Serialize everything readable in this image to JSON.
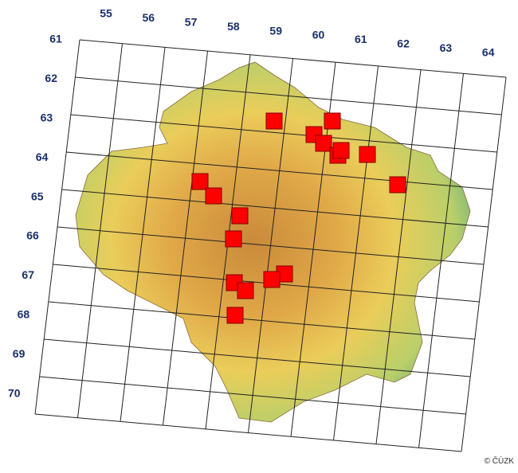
{
  "map": {
    "column_labels": [
      "55",
      "56",
      "57",
      "58",
      "59",
      "60",
      "61",
      "62",
      "63",
      "64"
    ],
    "row_labels": [
      "61",
      "62",
      "63",
      "64",
      "65",
      "66",
      "67",
      "68",
      "69",
      "70"
    ],
    "copyright": "© ČÚZK"
  }
}
